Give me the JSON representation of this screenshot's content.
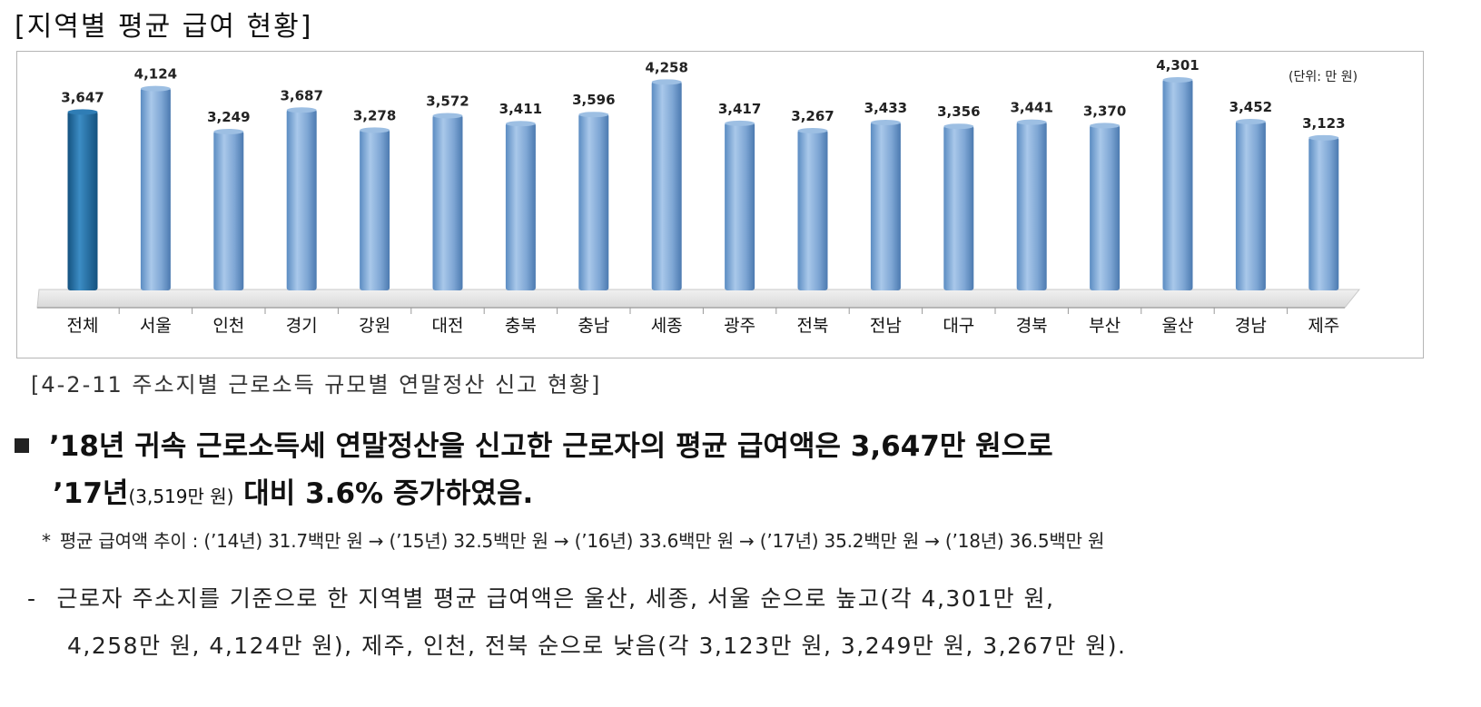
{
  "title": "[지역별 평균 급여 현황]",
  "caption": "[4-2-11 주소지별 근로소득 규모별 연말정산 신고 현황]",
  "summary": {
    "line1": "’18년 귀속 근로소득세 연말정산을 신고한 근로자의 평균 급여액은 3,647만 원으로",
    "line2_a": "’17년",
    "line2_b": "(3,519만 원)",
    "line2_c": " 대비 3.6% 증가하였음."
  },
  "note": {
    "star": "*",
    "text": "평균 급여액 추이 : (’14년) 31.7백만 원 → (’15년) 32.5백만 원 → (’16년) 33.6백만 원 → (’17년) 35.2백만 원 → (’18년) 36.5백만 원"
  },
  "detail": {
    "dash": "-",
    "line1": "근로자 주소지를 기준으로 한 지역별 평균 급여액은 울산, 세종, 서울 순으로 높고(각 4,301만 원,",
    "line2": "4,258만 원, 4,124만 원), 제주, 인천, 전북 순으로 낮음(각 3,123만 원, 3,249만 원, 3,267만 원)."
  },
  "chart_data": {
    "type": "bar",
    "title": "[지역별 평균 급여 현황]",
    "unit": "(단위: 만 원)",
    "categories": [
      "전체",
      "서울",
      "인천",
      "경기",
      "강원",
      "대전",
      "충북",
      "충남",
      "세종",
      "광주",
      "전북",
      "전남",
      "대구",
      "경북",
      "부산",
      "울산",
      "경남",
      "제주"
    ],
    "values": [
      3647,
      4124,
      3249,
      3687,
      3278,
      3572,
      3411,
      3596,
      4258,
      3417,
      3267,
      3433,
      3356,
      3441,
      3370,
      4301,
      3452,
      3123
    ],
    "value_labels": [
      "3,647",
      "4,124",
      "3,249",
      "3,687",
      "3,278",
      "3,572",
      "3,411",
      "3,596",
      "4,258",
      "3,417",
      "3,267",
      "3,433",
      "3,356",
      "3,441",
      "3,370",
      "4,301",
      "3,452",
      "3,123"
    ],
    "highlight_index": 0,
    "colors": {
      "highlight": "#1f6fa8",
      "bar": "#7faad6",
      "bar_dark": "#4a7fb5"
    },
    "grid": false,
    "legend": "none"
  }
}
